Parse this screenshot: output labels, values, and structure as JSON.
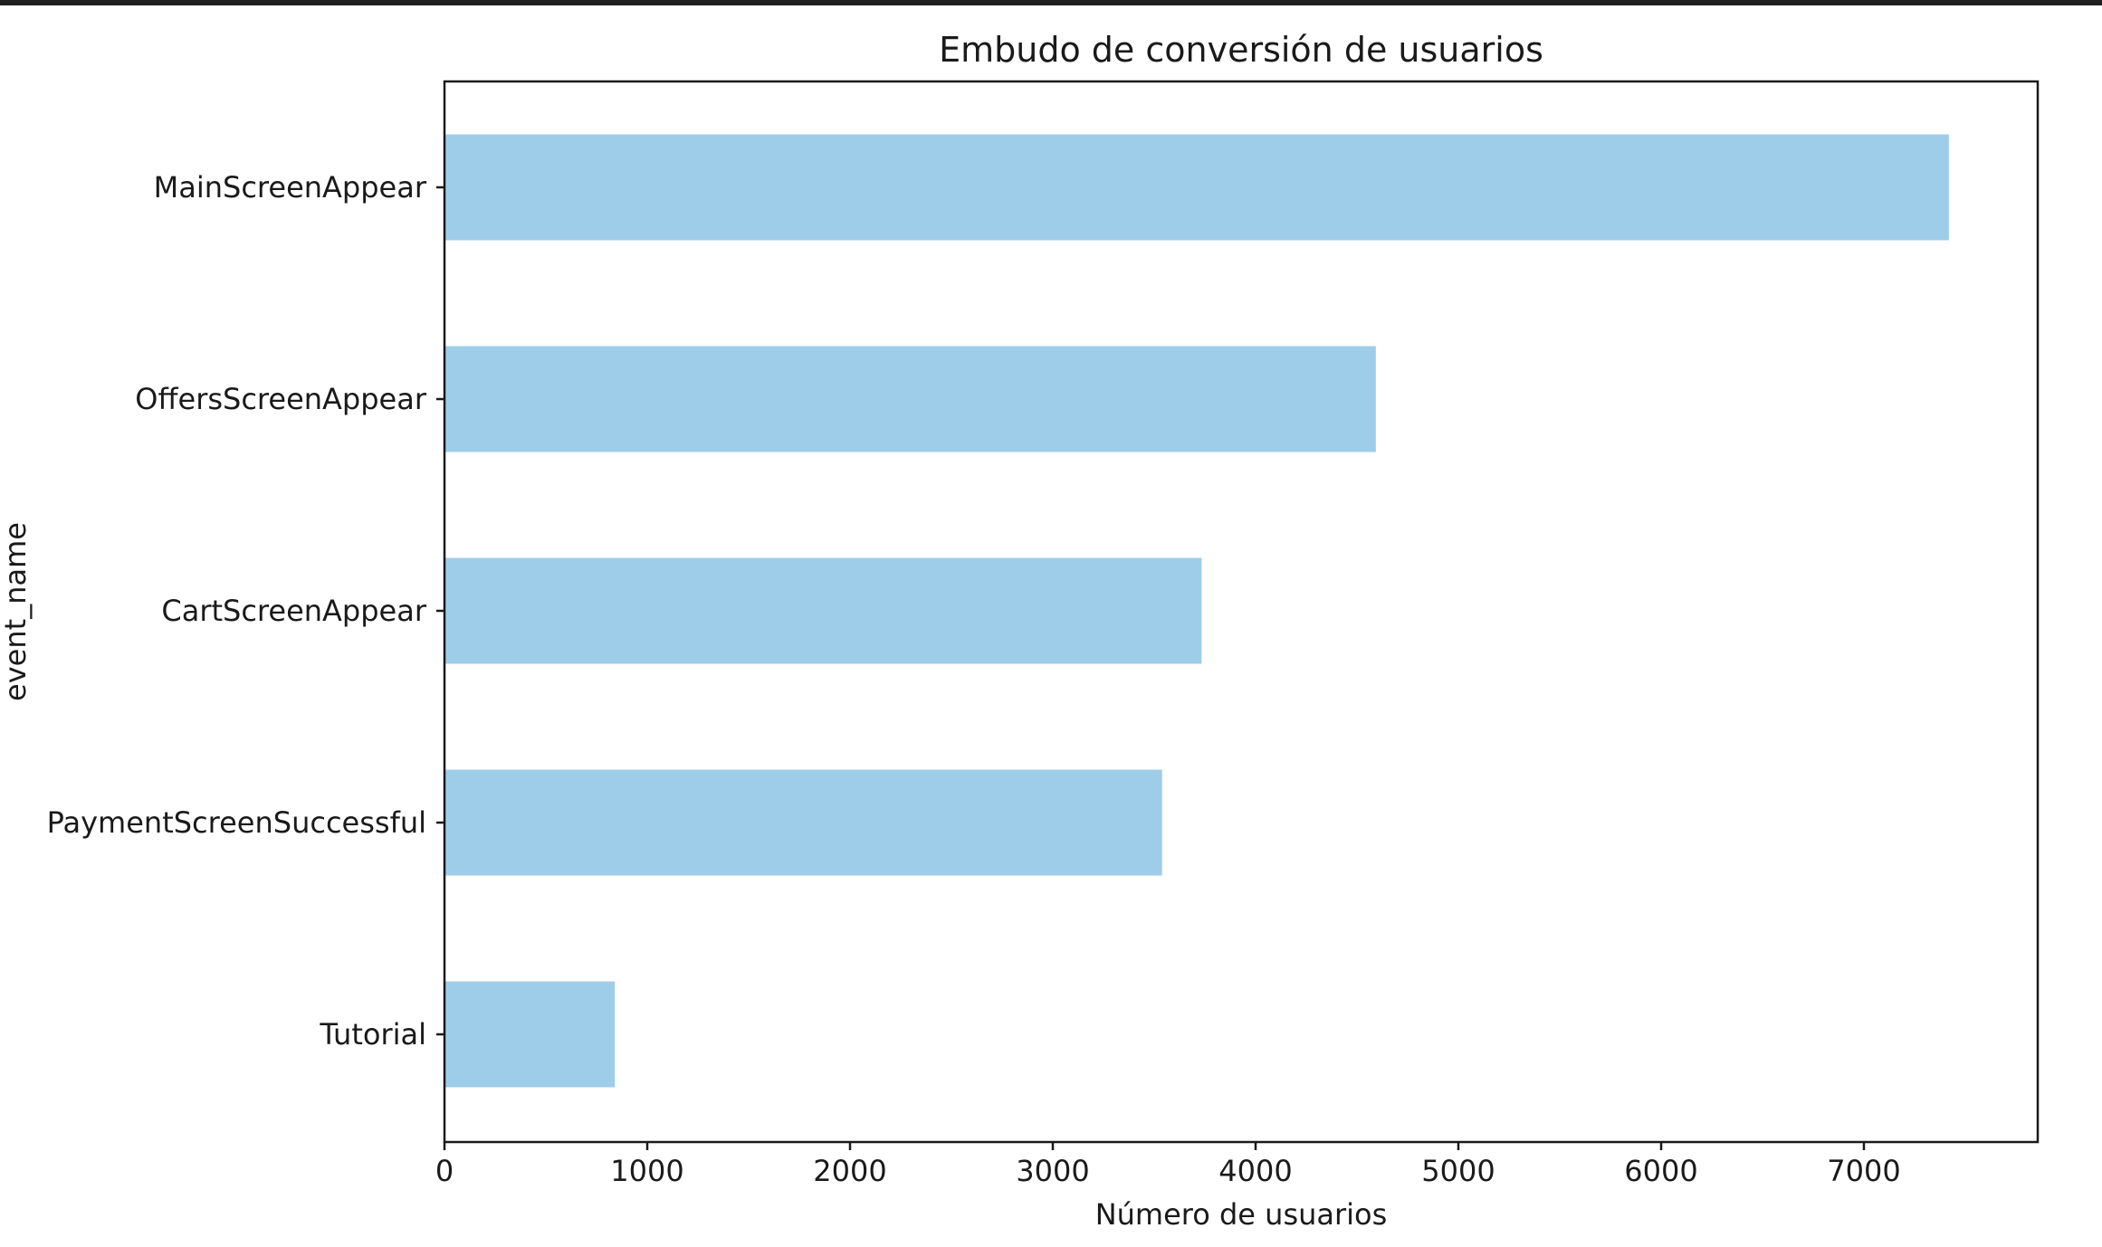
{
  "chart_data": {
    "type": "bar",
    "orientation": "horizontal",
    "title": "Embudo de conversión de usuarios",
    "xlabel": "Número de usuarios",
    "ylabel": "event_name",
    "categories": [
      "MainScreenAppear",
      "OffersScreenAppear",
      "CartScreenAppear",
      "PaymentScreenSuccessful",
      "Tutorial"
    ],
    "values": [
      7419,
      4593,
      3734,
      3539,
      840
    ],
    "xlim": [
      0,
      7800
    ],
    "xticks": [
      0,
      1000,
      2000,
      3000,
      4000,
      5000,
      6000,
      7000
    ],
    "grid": false,
    "bar_color": "#9ecdea"
  }
}
